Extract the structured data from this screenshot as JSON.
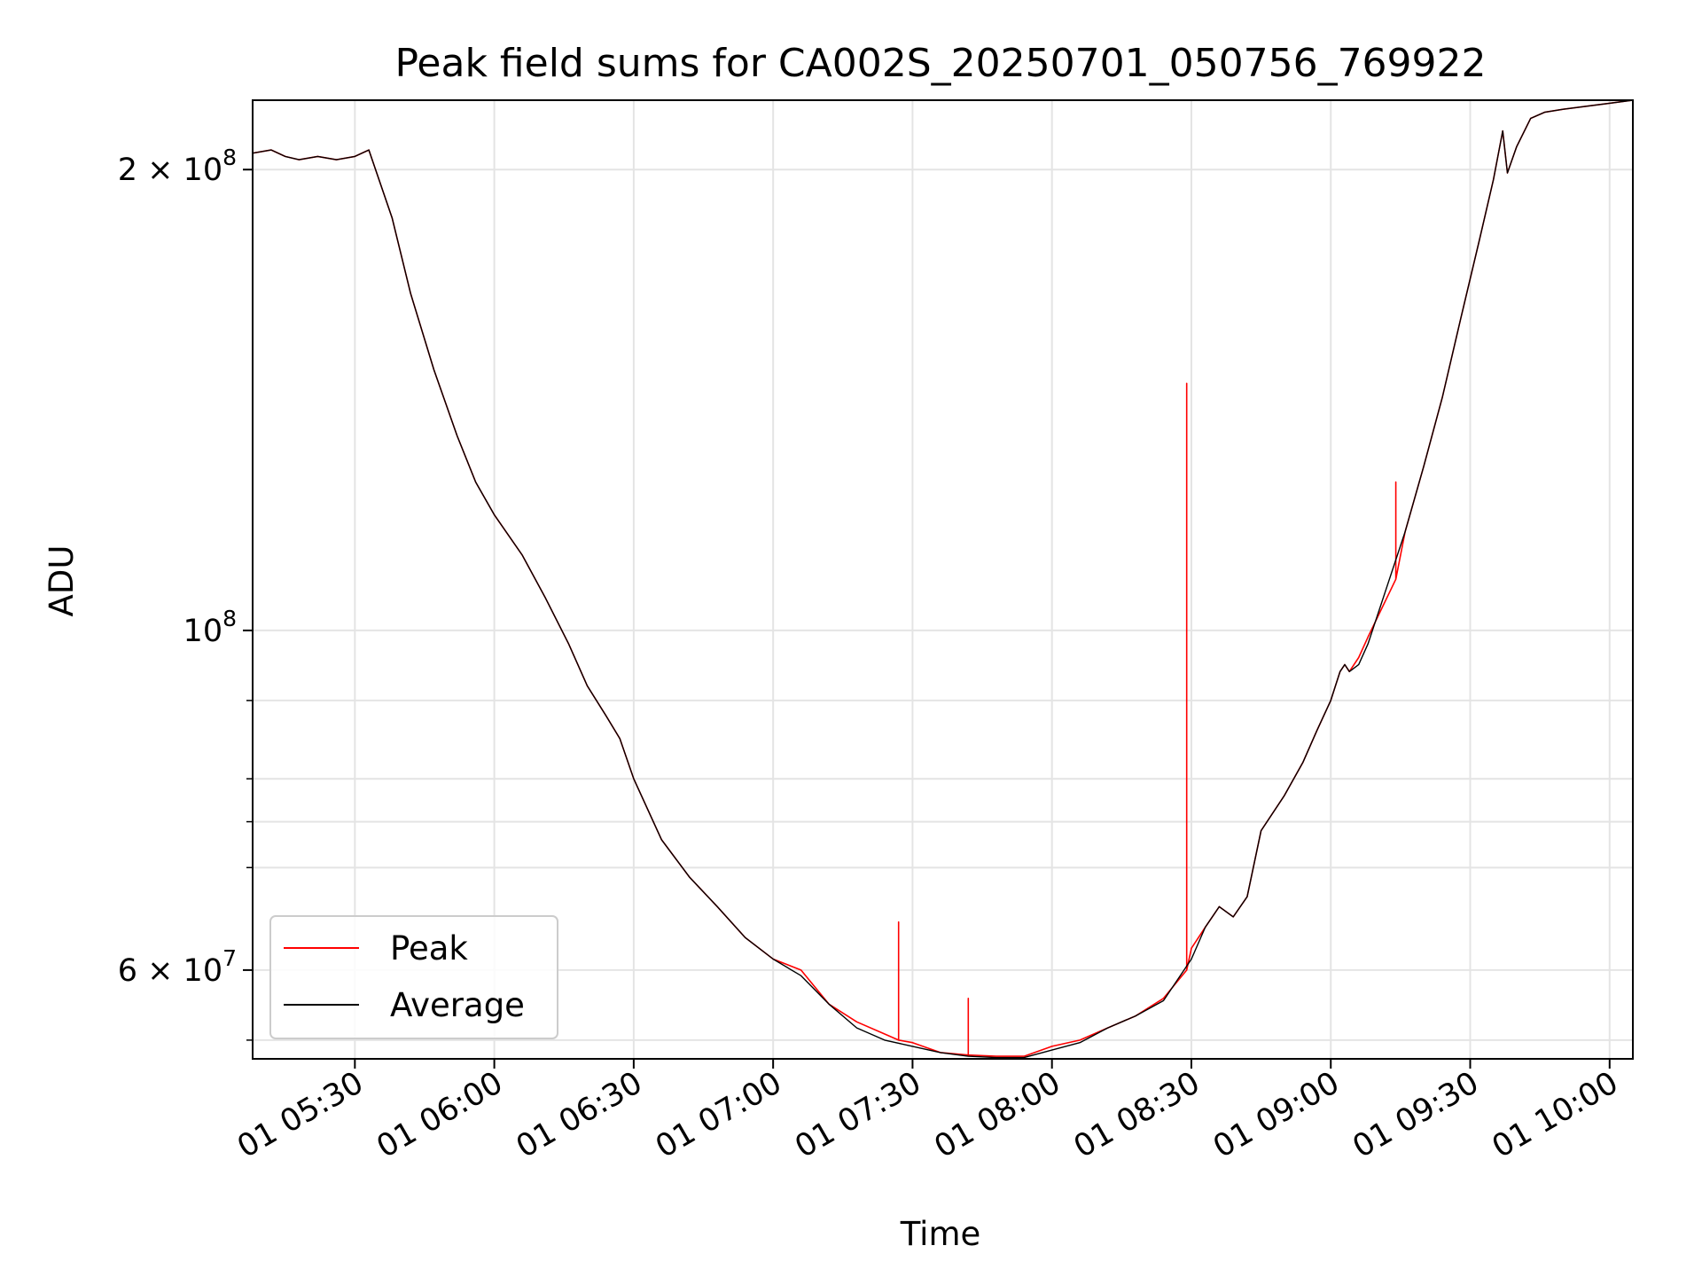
{
  "chart_data": {
    "type": "line",
    "title": "Peak field sums for CA002S_20250701_050756_769922",
    "xlabel": "Time",
    "ylabel": "ADU",
    "x_scale": "time",
    "y_scale": "log",
    "xlim": [
      "2025-07-01 05:08",
      "2025-07-01 10:05"
    ],
    "ylim": [
      52500000,
      222000000
    ],
    "grid": true,
    "legend_location": "lower left",
    "x_ticks": [
      {
        "value": "2025-07-01 05:30",
        "label": "01 05:30"
      },
      {
        "value": "2025-07-01 06:00",
        "label": "01 06:00"
      },
      {
        "value": "2025-07-01 06:30",
        "label": "01 06:30"
      },
      {
        "value": "2025-07-01 07:00",
        "label": "01 07:00"
      },
      {
        "value": "2025-07-01 07:30",
        "label": "01 07:30"
      },
      {
        "value": "2025-07-01 08:00",
        "label": "01 08:00"
      },
      {
        "value": "2025-07-01 08:30",
        "label": "01 08:30"
      },
      {
        "value": "2025-07-01 09:00",
        "label": "01 09:00"
      },
      {
        "value": "2025-07-01 09:30",
        "label": "01 09:30"
      },
      {
        "value": "2025-07-01 10:00",
        "label": "01 10:00"
      }
    ],
    "y_ticks": [
      {
        "value": 200000000,
        "mantissa": "2",
        "times": "×",
        "base": "10",
        "exp": "8"
      },
      {
        "value": 100000000,
        "mantissa": "",
        "times": "",
        "base": "10",
        "exp": "8"
      },
      {
        "value": 60000000,
        "mantissa": "6",
        "times": "×",
        "base": "10",
        "exp": "7"
      }
    ],
    "y_minor_ticks": [
      54000000,
      70000000,
      75000000,
      80000000,
      90000000
    ],
    "series": [
      {
        "name": "Peak",
        "color": "#ff0000",
        "x": [
          "2025-07-01 05:08",
          "2025-07-01 05:12",
          "2025-07-01 05:15",
          "2025-07-01 05:18",
          "2025-07-01 05:22",
          "2025-07-01 05:26",
          "2025-07-01 05:30",
          "2025-07-01 05:33",
          "2025-07-01 05:38",
          "2025-07-01 05:42",
          "2025-07-01 05:47",
          "2025-07-01 05:52",
          "2025-07-01 05:56",
          "2025-07-01 06:00",
          "2025-07-01 06:06",
          "2025-07-01 06:11",
          "2025-07-01 06:16",
          "2025-07-01 06:20",
          "2025-07-01 06:24",
          "2025-07-01 06:27",
          "2025-07-01 06:30",
          "2025-07-01 06:36",
          "2025-07-01 06:42",
          "2025-07-01 06:48",
          "2025-07-01 06:54",
          "2025-07-01 07:00",
          "2025-07-01 07:06",
          "2025-07-01 07:12",
          "2025-07-01 07:18",
          "2025-07-01 07:24",
          "2025-07-01 07:27",
          "2025-07-01 07:27",
          "2025-07-01 07:27",
          "2025-07-01 07:30",
          "2025-07-01 07:36",
          "2025-07-01 07:42",
          "2025-07-01 07:42",
          "2025-07-01 07:42",
          "2025-07-01 07:48",
          "2025-07-01 07:54",
          "2025-07-01 08:00",
          "2025-07-01 08:06",
          "2025-07-01 08:12",
          "2025-07-01 08:18",
          "2025-07-01 08:24",
          "2025-07-01 08:29",
          "2025-07-01 08:29",
          "2025-07-01 08:29",
          "2025-07-01 08:30",
          "2025-07-01 08:33",
          "2025-07-01 08:36",
          "2025-07-01 08:39",
          "2025-07-01 08:42",
          "2025-07-01 08:45",
          "2025-07-01 08:50",
          "2025-07-01 08:54",
          "2025-07-01 08:57",
          "2025-07-01 09:00",
          "2025-07-01 09:01",
          "2025-07-01 09:02",
          "2025-07-01 09:03",
          "2025-07-01 09:04",
          "2025-07-01 09:06",
          "2025-07-01 09:08",
          "2025-07-01 09:14",
          "2025-07-01 09:14",
          "2025-07-01 09:14",
          "2025-07-01 09:16",
          "2025-07-01 09:20",
          "2025-07-01 09:24",
          "2025-07-01 09:28",
          "2025-07-01 09:32",
          "2025-07-01 09:35",
          "2025-07-01 09:37",
          "2025-07-01 09:38",
          "2025-07-01 09:40",
          "2025-07-01 09:43",
          "2025-07-01 09:46",
          "2025-07-01 09:50",
          "2025-07-01 09:55",
          "2025-07-01 10:00",
          "2025-07-01 10:05"
        ],
        "y": [
          205000000,
          206000000,
          204000000,
          203000000,
          204000000,
          203000000,
          204000000,
          206000000,
          186000000,
          166000000,
          148000000,
          134000000,
          125000000,
          119000000,
          112000000,
          105000000,
          98000000,
          92000000,
          88000000,
          85000000,
          80000000,
          73000000,
          69000000,
          66000000,
          63000000,
          61000000,
          60000000,
          57000000,
          55500000,
          54500000,
          54000000,
          64500000,
          54000000,
          53800000,
          53000000,
          52800000,
          57500000,
          52800000,
          52700000,
          52700000,
          53500000,
          54000000,
          55000000,
          56000000,
          57500000,
          60000000,
          145000000,
          60000000,
          62000000,
          64000000,
          66000000,
          65000000,
          67000000,
          74000000,
          78000000,
          82000000,
          86000000,
          90000000,
          92000000,
          94000000,
          95000000,
          94000000,
          96000000,
          99000000,
          108000000,
          125000000,
          108000000,
          116000000,
          128000000,
          142000000,
          160000000,
          180000000,
          197000000,
          212000000,
          199000000,
          207000000,
          216000000,
          218000000,
          219000000,
          220000000,
          221000000,
          222000000
        ]
      },
      {
        "name": "Average",
        "color": "#000000",
        "x": [
          "2025-07-01 05:08",
          "2025-07-01 05:12",
          "2025-07-01 05:15",
          "2025-07-01 05:18",
          "2025-07-01 05:22",
          "2025-07-01 05:26",
          "2025-07-01 05:30",
          "2025-07-01 05:33",
          "2025-07-01 05:38",
          "2025-07-01 05:42",
          "2025-07-01 05:47",
          "2025-07-01 05:52",
          "2025-07-01 05:56",
          "2025-07-01 06:00",
          "2025-07-01 06:06",
          "2025-07-01 06:11",
          "2025-07-01 06:16",
          "2025-07-01 06:20",
          "2025-07-01 06:24",
          "2025-07-01 06:27",
          "2025-07-01 06:30",
          "2025-07-01 06:36",
          "2025-07-01 06:42",
          "2025-07-01 06:48",
          "2025-07-01 06:54",
          "2025-07-01 07:00",
          "2025-07-01 07:06",
          "2025-07-01 07:12",
          "2025-07-01 07:18",
          "2025-07-01 07:24",
          "2025-07-01 07:30",
          "2025-07-01 07:36",
          "2025-07-01 07:42",
          "2025-07-01 07:48",
          "2025-07-01 07:54",
          "2025-07-01 08:00",
          "2025-07-01 08:06",
          "2025-07-01 08:12",
          "2025-07-01 08:18",
          "2025-07-01 08:24",
          "2025-07-01 08:30",
          "2025-07-01 08:33",
          "2025-07-01 08:36",
          "2025-07-01 08:39",
          "2025-07-01 08:42",
          "2025-07-01 08:45",
          "2025-07-01 08:50",
          "2025-07-01 08:54",
          "2025-07-01 08:57",
          "2025-07-01 09:00",
          "2025-07-01 09:01",
          "2025-07-01 09:02",
          "2025-07-01 09:03",
          "2025-07-01 09:04",
          "2025-07-01 09:06",
          "2025-07-01 09:08",
          "2025-07-01 09:16",
          "2025-07-01 09:20",
          "2025-07-01 09:24",
          "2025-07-01 09:28",
          "2025-07-01 09:32",
          "2025-07-01 09:35",
          "2025-07-01 09:37",
          "2025-07-01 09:38",
          "2025-07-01 09:40",
          "2025-07-01 09:43",
          "2025-07-01 09:46",
          "2025-07-01 09:50",
          "2025-07-01 09:55",
          "2025-07-01 10:00",
          "2025-07-01 10:05"
        ],
        "y": [
          205000000,
          206000000,
          204000000,
          203000000,
          204000000,
          203000000,
          204000000,
          206000000,
          186000000,
          166000000,
          148000000,
          134000000,
          125000000,
          119000000,
          112000000,
          105000000,
          98000000,
          92000000,
          88000000,
          85000000,
          80000000,
          73000000,
          69000000,
          66000000,
          63000000,
          61000000,
          59500000,
          57000000,
          55000000,
          54000000,
          53500000,
          53000000,
          52700000,
          52600000,
          52600000,
          53200000,
          53800000,
          55000000,
          56000000,
          57300000,
          61000000,
          64000000,
          66000000,
          65000000,
          67000000,
          74000000,
          78000000,
          82000000,
          86000000,
          90000000,
          92000000,
          94000000,
          95000000,
          94000000,
          95000000,
          98000000,
          116000000,
          128000000,
          142000000,
          160000000,
          180000000,
          197000000,
          212000000,
          199000000,
          207000000,
          216000000,
          218000000,
          219000000,
          220000000,
          221000000,
          222000000
        ]
      }
    ]
  }
}
